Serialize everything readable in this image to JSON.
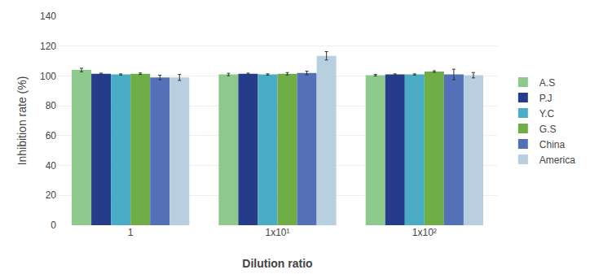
{
  "chart_data": {
    "type": "bar",
    "xlabel": "Dilution ratio",
    "ylabel": "Inhibition rate (%)",
    "categories": [
      "1",
      "1x10¹",
      "1x10²"
    ],
    "series": [
      {
        "name": "A.S",
        "color": "#8dc88d",
        "values": [
          104.0,
          101.0,
          100.5
        ],
        "errors": [
          1.2,
          0.8,
          0.5
        ]
      },
      {
        "name": "P.J",
        "color": "#253c8a",
        "values": [
          101.5,
          101.5,
          101.0
        ],
        "errors": [
          0.4,
          0.4,
          0.4
        ]
      },
      {
        "name": "Y.C",
        "color": "#4bacc6",
        "values": [
          101.0,
          101.0,
          101.0
        ],
        "errors": [
          0.4,
          0.4,
          0.4
        ]
      },
      {
        "name": "G.S",
        "color": "#70ad47",
        "values": [
          101.5,
          101.5,
          103.0
        ],
        "errors": [
          0.5,
          0.8,
          0.5
        ]
      },
      {
        "name": "China",
        "color": "#5470b8",
        "values": [
          99.0,
          102.0,
          101.0
        ],
        "errors": [
          1.5,
          1.2,
          3.5
        ]
      },
      {
        "name": "America",
        "color": "#b8cfe0",
        "values": [
          99.0,
          113.5,
          100.5
        ],
        "errors": [
          2.0,
          2.8,
          1.8
        ]
      }
    ],
    "ylim": [
      0,
      140
    ],
    "yticks": [
      0,
      20,
      40,
      60,
      80,
      100,
      120,
      140
    ],
    "grid": true,
    "legend": "right"
  }
}
